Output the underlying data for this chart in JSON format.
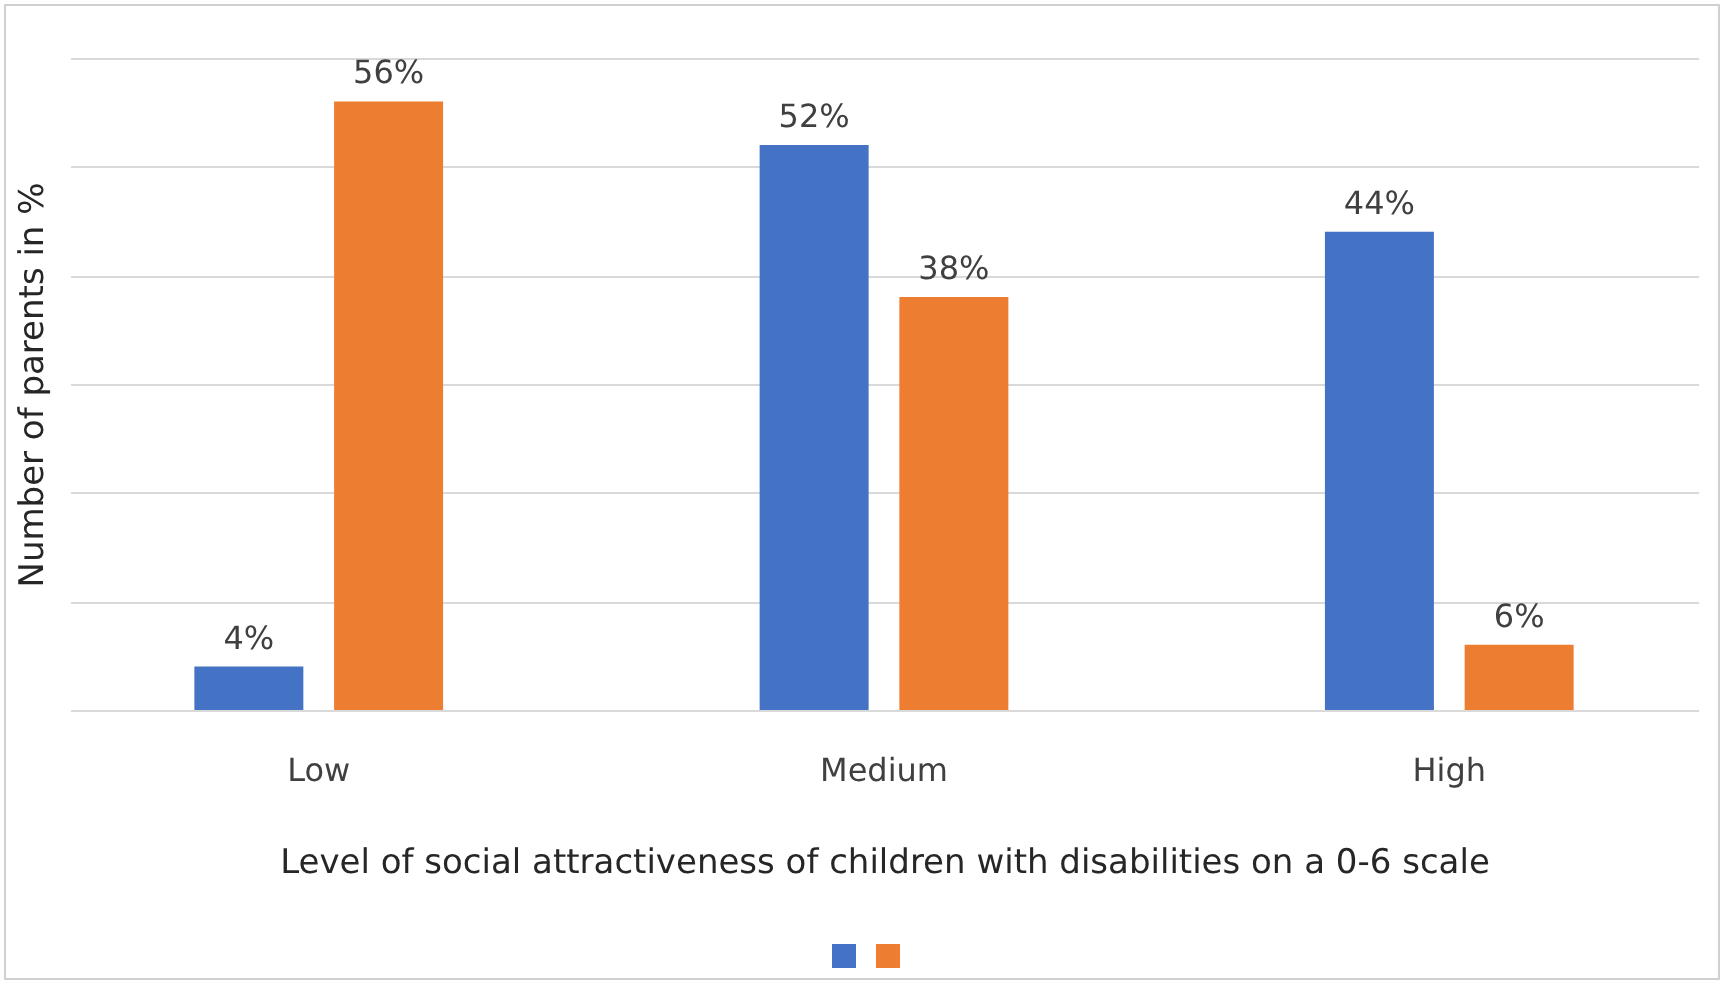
{
  "chart_data": {
    "type": "bar",
    "xlabel": "Level of social attractiveness of children with disabilities on a 0-6 scale",
    "ylabel": "Number of parents in %",
    "categories": [
      "Low",
      "Medium",
      "High"
    ],
    "series": [
      {
        "color": "#4472c4",
        "values": [
          4,
          52,
          44
        ],
        "value_labels": [
          "4%",
          "52%",
          "44%"
        ]
      },
      {
        "color": "#ed7d31",
        "values": [
          56,
          38,
          6
        ],
        "value_labels": [
          "56%",
          "38%",
          "6%"
        ]
      }
    ],
    "ylim": [
      0,
      60
    ],
    "yticks": [
      {
        "value": 0,
        "label": null
      },
      {
        "value": 10,
        "label": null
      },
      {
        "value": 20,
        "label": null
      },
      {
        "value": 30,
        "label": null
      },
      {
        "value": 40,
        "label": null
      },
      {
        "value": 50,
        "label": null
      },
      {
        "value": 60,
        "label": null
      }
    ],
    "tick_labels": "x",
    "grid": "y"
  }
}
